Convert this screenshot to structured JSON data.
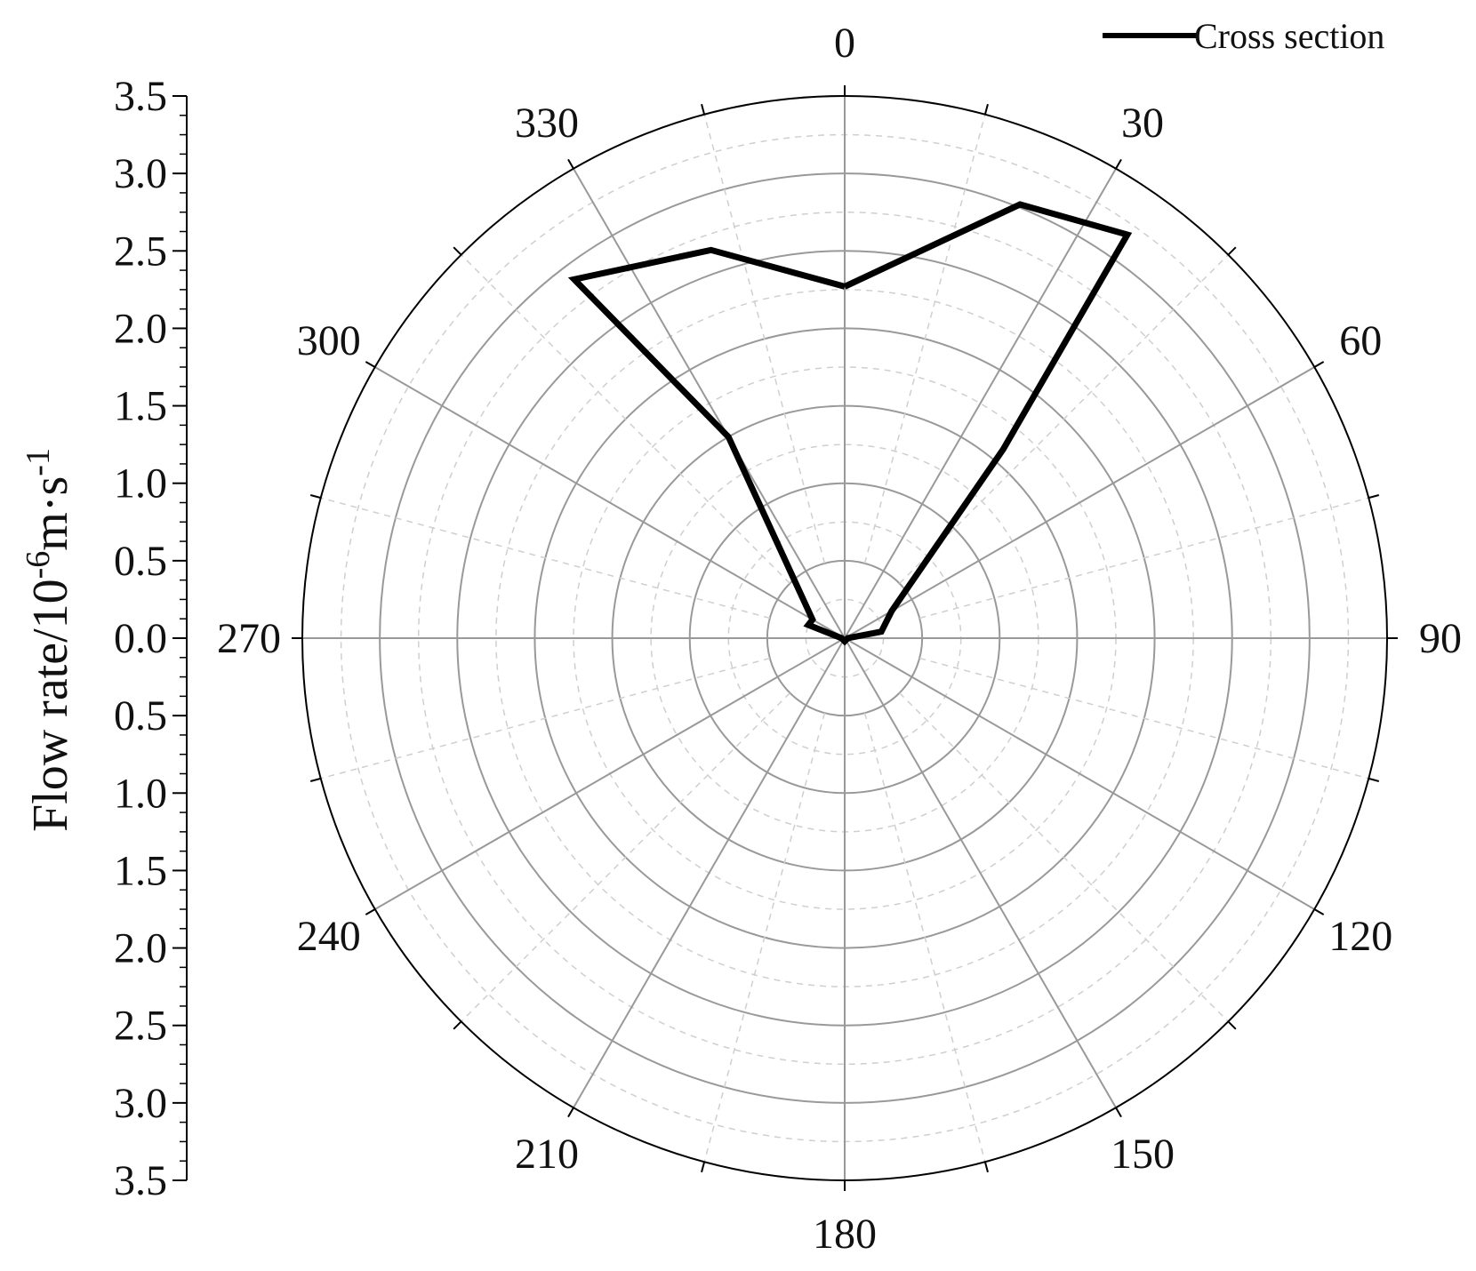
{
  "chart_data": {
    "type": "polar-line",
    "ylabel": "Flow rate/10",
    "ylabel_sup1": "-6",
    "ylabel_mid": "m·s",
    "ylabel_sup2": "-1",
    "radial_range": [
      0,
      3.5
    ],
    "radial_major_step": 0.5,
    "radial_minor_step": 0.25,
    "radial_tick_labels": [
      "3.5",
      "3.0",
      "2.5",
      "2.0",
      "1.5",
      "1.0",
      "0.5",
      "0.0",
      "0.5",
      "1.0",
      "1.5",
      "2.0",
      "2.5",
      "3.0",
      "3.5"
    ],
    "angle_tick_labels": [
      "0",
      "30",
      "60",
      "90",
      "120",
      "150",
      "180",
      "210",
      "240",
      "270",
      "300",
      "330"
    ],
    "angle_direction": "clockwise",
    "angle_zero": "top",
    "grid": true,
    "legend": {
      "position": "top-right"
    },
    "series": [
      {
        "name": "Cross section",
        "color": "#000000",
        "points": [
          {
            "angle": 0,
            "r": 2.27
          },
          {
            "angle": 22,
            "r": 3.02
          },
          {
            "angle": 35,
            "r": 3.18
          },
          {
            "angle": 40,
            "r": 1.59
          },
          {
            "angle": 60,
            "r": 0.35
          },
          {
            "angle": 80,
            "r": 0.24
          },
          {
            "angle": 90,
            "r": 0.02
          },
          {
            "angle": 180,
            "r": 0.02
          },
          {
            "angle": 270,
            "r": 0.02
          },
          {
            "angle": 290,
            "r": 0.25
          },
          {
            "angle": 300,
            "r": 0.24
          },
          {
            "angle": 330,
            "r": 1.5
          },
          {
            "angle": 323,
            "r": 2.9
          },
          {
            "angle": 341,
            "r": 2.65
          },
          {
            "angle": 0,
            "r": 2.27
          }
        ]
      }
    ]
  }
}
